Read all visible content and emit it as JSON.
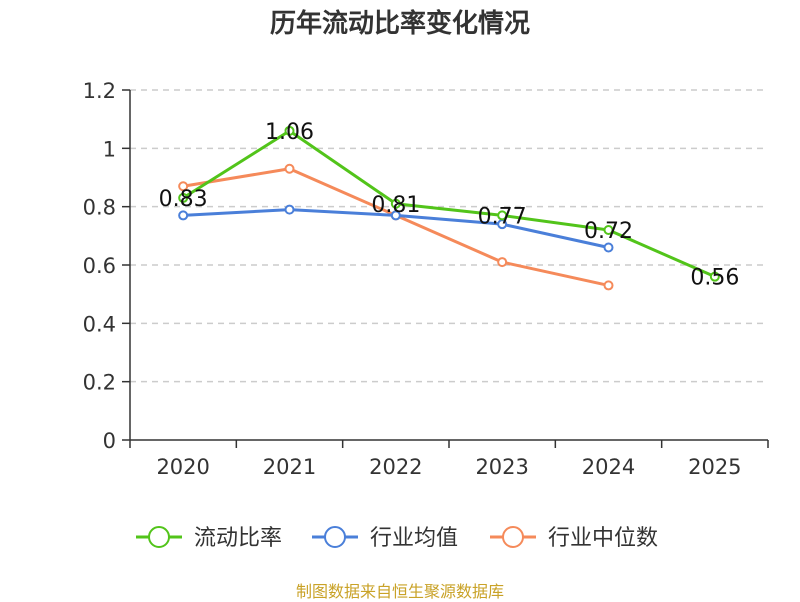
{
  "chart_data": {
    "type": "line",
    "title": "历年流动比率变化情况",
    "categories": [
      "2020",
      "2021",
      "2022",
      "2023",
      "2024",
      "2025"
    ],
    "ylim": [
      0,
      1.2
    ],
    "yticks": [
      "0",
      "0.2",
      "0.4",
      "0.6",
      "0.8",
      "1",
      "1.2"
    ],
    "ytick_values": [
      0,
      0.2,
      0.4,
      0.6,
      0.8,
      1.0,
      1.2
    ],
    "grid": true,
    "legend_position": "bottom",
    "series": [
      {
        "name": "流动比率",
        "color": "#52c41a",
        "values": [
          0.83,
          1.06,
          0.81,
          0.77,
          0.72,
          0.56
        ],
        "labels": [
          "0.83",
          "1.06",
          "0.81",
          "0.77",
          "0.72",
          "0.56"
        ],
        "show_labels": true
      },
      {
        "name": "行业均值",
        "color": "#4a7fd9",
        "values": [
          0.77,
          0.79,
          0.77,
          0.74,
          0.66,
          null
        ],
        "show_labels": false
      },
      {
        "name": "行业中位数",
        "color": "#f58a5a",
        "values": [
          0.87,
          0.93,
          0.77,
          0.61,
          0.53,
          null
        ],
        "show_labels": false
      }
    ]
  },
  "source_note": "制图数据来自恒生聚源数据库"
}
